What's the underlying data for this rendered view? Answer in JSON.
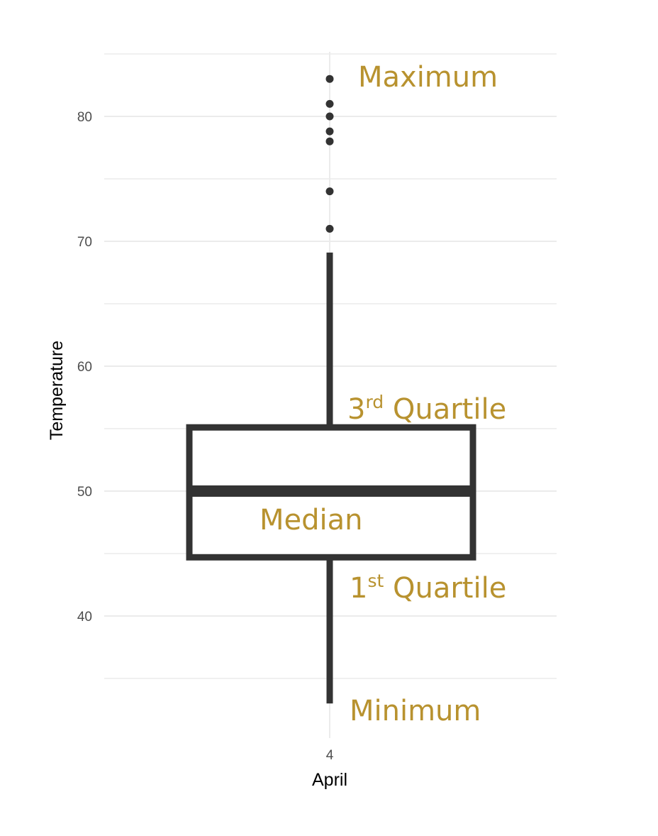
{
  "chart_data": {
    "type": "box",
    "title": "",
    "xlabel": "April",
    "ylabel": "Temperature",
    "categories": [
      "4"
    ],
    "y_ticks": [
      40,
      50,
      60,
      70,
      80
    ],
    "ylim": [
      31.5,
      85.5
    ],
    "grid": true,
    "box": {
      "lower_whisker": 33,
      "q1": 44.7,
      "median": 50,
      "q3": 55.1,
      "upper_whisker": 69.1
    },
    "outliers": [
      71,
      74,
      78,
      78.8,
      80,
      81,
      83
    ],
    "annotations": [
      {
        "id": "maximum",
        "text": "Maximum",
        "sup": "",
        "rest": ""
      },
      {
        "id": "q3",
        "text": "3",
        "sup": "rd",
        "rest": " Quartile"
      },
      {
        "id": "median",
        "text": "Median",
        "sup": "",
        "rest": ""
      },
      {
        "id": "q1",
        "text": "1",
        "sup": "st",
        "rest": " Quartile"
      },
      {
        "id": "minimum",
        "text": "Minimum",
        "sup": "",
        "rest": ""
      }
    ],
    "colors": {
      "box": "#333333",
      "points": "#333333",
      "grid": "#ebebeb",
      "annotation": "#b8922f",
      "tick": "#4d4d4d"
    }
  }
}
